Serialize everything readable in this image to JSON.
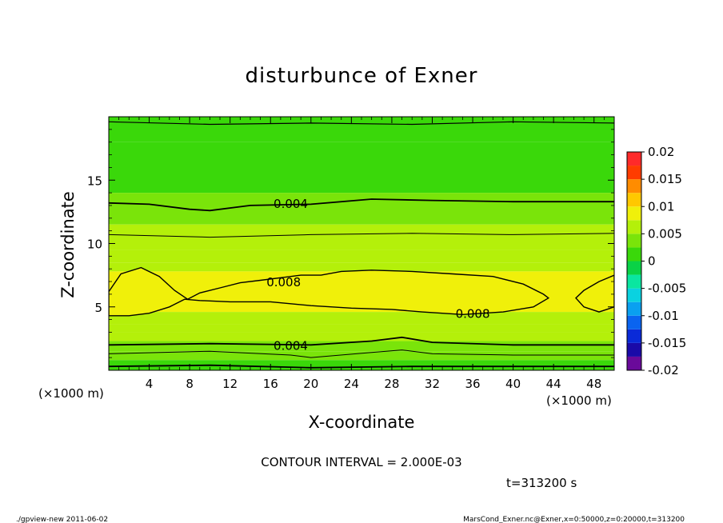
{
  "chart_data": {
    "type": "contour",
    "title": "disturbunce of Exner",
    "xlabel": "X-coordinate",
    "ylabel": "Z-coordinate",
    "x_unit_left": "(×1000 m)",
    "x_unit_right": "(×1000 m)",
    "xlim": [
      0,
      50
    ],
    "ylim": [
      0,
      20
    ],
    "xticks": [
      4,
      8,
      12,
      16,
      20,
      24,
      28,
      32,
      36,
      40,
      44,
      48
    ],
    "yticks": [
      5,
      10,
      15
    ],
    "contour_interval_text": "CONTOUR INTERVAL = 2.000E-03",
    "time_text": "t=313200 s",
    "colorbar": {
      "range": [
        -0.02,
        0.02
      ],
      "tick_labels": [
        "0.02",
        "0.015",
        "0.01",
        "0.005",
        "0",
        "-0.005",
        "-0.01",
        "-0.015",
        "-0.02"
      ],
      "levels": [
        -0.02,
        -0.0175,
        -0.015,
        -0.0125,
        -0.01,
        -0.0075,
        -0.005,
        -0.0025,
        0,
        0.0025,
        0.005,
        0.0075,
        0.01,
        0.0125,
        0.015,
        0.0175,
        0.02
      ],
      "colors": [
        "#6a0a9a",
        "#1a0aa8",
        "#0a2ad8",
        "#0a64f0",
        "#0aa0f0",
        "#0ad2e0",
        "#0ae6a0",
        "#0ad246",
        "#3ad80a",
        "#7ae40a",
        "#b4f00a",
        "#f0f00a",
        "#ffc800",
        "#ff8c00",
        "#ff3c00",
        "#ff2a2a",
        "#ff8080",
        "#ffb4b4"
      ]
    },
    "contour_labels": [
      {
        "text": "0.004",
        "x": 18.0,
        "z": 13.2
      },
      {
        "text": "0.008",
        "x": 17.3,
        "z": 7.0
      },
      {
        "text": "0.008",
        "x": 36.0,
        "z": 4.5
      },
      {
        "text": "0.004",
        "x": 18.0,
        "z": 2.0
      }
    ],
    "bands": [
      {
        "z_top": 20.0,
        "value": 0.001
      },
      {
        "z_top": 18.0,
        "value": 0.002
      },
      {
        "z_top": 14.0,
        "value": 0.004
      },
      {
        "z_top": 11.5,
        "value": 0.005
      },
      {
        "z_top": 9.5,
        "value": 0.006
      },
      {
        "z_top": 8.5,
        "value": 0.007
      },
      {
        "z_top": 7.8,
        "value": 0.0085
      },
      {
        "z_top": 4.6,
        "value": 0.007
      },
      {
        "z_top": 3.6,
        "value": 0.006
      },
      {
        "z_top": 3.0,
        "value": 0.005
      },
      {
        "z_top": 2.3,
        "value": 0.004
      },
      {
        "z_top": 1.5,
        "value": 0.003
      },
      {
        "z_top": 0.8,
        "value": 0.002
      }
    ]
  },
  "footer": {
    "left": "./gpview-new   2011-06-02",
    "right": "MarsCond_Exner.nc@Exner,x=0:50000,z=0:20000,t=313200"
  }
}
